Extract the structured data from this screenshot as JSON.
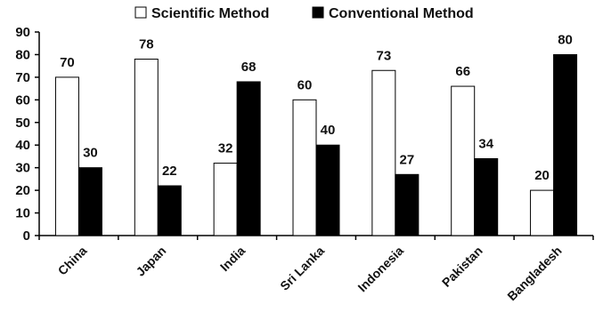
{
  "chart_data": {
    "type": "bar",
    "categories": [
      "China",
      "Japan",
      "India",
      "Sri Lanka",
      "Indonesia",
      "Pakistan",
      "Bangladesh"
    ],
    "series": [
      {
        "name": "Scientific Method",
        "values": [
          70,
          78,
          32,
          60,
          73,
          66,
          20
        ],
        "color": "#ffffff"
      },
      {
        "name": "Conventional Method",
        "values": [
          30,
          22,
          68,
          40,
          27,
          34,
          80
        ],
        "color": "#000000"
      }
    ],
    "ylim": [
      0,
      90
    ],
    "yticks": [
      0,
      10,
      20,
      30,
      40,
      50,
      60,
      70,
      80,
      90
    ],
    "title": "",
    "xlabel": "",
    "ylabel": "",
    "grid": false,
    "legend_position": "top"
  }
}
